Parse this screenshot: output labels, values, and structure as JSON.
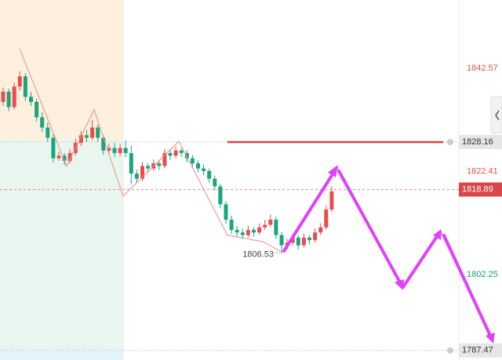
{
  "chart_data": {
    "type": "candlestick",
    "up_color": "#e84d4d",
    "down_color": "#1ba57d",
    "ylim": [
      1785.6,
      1855.9
    ],
    "ohlc": [
      [
        1836,
        1838.8,
        1835.2,
        1838
      ],
      [
        1838,
        1838.6,
        1834.2,
        1835
      ],
      [
        1835,
        1839.8,
        1834.5,
        1839
      ],
      [
        1839,
        1842,
        1838.2,
        1841
      ],
      [
        1841,
        1841.6,
        1836.2,
        1837
      ],
      [
        1837,
        1838,
        1835.2,
        1836
      ],
      [
        1836,
        1836.6,
        1832.2,
        1833
      ],
      [
        1833,
        1834,
        1830.2,
        1831
      ],
      [
        1831,
        1832,
        1828.2,
        1829
      ],
      [
        1829,
        1829.6,
        1824.2,
        1825
      ],
      [
        1825,
        1826.3,
        1824.5,
        1825.5
      ],
      [
        1825.5,
        1826,
        1823.7,
        1824.5
      ],
      [
        1824.5,
        1826.8,
        1824,
        1826
      ],
      [
        1826,
        1828.8,
        1825.5,
        1828
      ],
      [
        1828,
        1830.3,
        1827.4,
        1829.5
      ],
      [
        1829.5,
        1830.5,
        1828.2,
        1829
      ],
      [
        1829,
        1832.5,
        1828.5,
        1831
      ],
      [
        1831,
        1831.6,
        1828.2,
        1829
      ],
      [
        1829,
        1829.5,
        1825.7,
        1826.5
      ],
      [
        1826.5,
        1827.8,
        1825.8,
        1827
      ],
      [
        1827,
        1828,
        1825.2,
        1826
      ],
      [
        1826,
        1827.8,
        1825.4,
        1827
      ],
      [
        1827,
        1828.5,
        1825.2,
        1826
      ],
      [
        1826,
        1827.5,
        1820,
        1822
      ],
      [
        1822,
        1822.8,
        1820.2,
        1821
      ],
      [
        1821,
        1824.3,
        1820.5,
        1823.5
      ],
      [
        1823.5,
        1824,
        1822.2,
        1823
      ],
      [
        1823,
        1824.8,
        1822.5,
        1824
      ],
      [
        1824,
        1824.6,
        1822.7,
        1823.5
      ],
      [
        1823.5,
        1826.8,
        1823,
        1826
      ],
      [
        1826,
        1826.8,
        1824.7,
        1825.5
      ],
      [
        1825.5,
        1827.3,
        1825,
        1826.5
      ],
      [
        1826.5,
        1827,
        1825.2,
        1826
      ],
      [
        1826,
        1826.6,
        1824.2,
        1825
      ],
      [
        1825,
        1825.6,
        1823.2,
        1824
      ],
      [
        1824,
        1824.6,
        1822.2,
        1823
      ],
      [
        1823,
        1823.8,
        1821.7,
        1822.5
      ],
      [
        1822.5,
        1823,
        1820.2,
        1821
      ],
      [
        1821,
        1821.6,
        1818.7,
        1819.5
      ],
      [
        1819.5,
        1820,
        1815.2,
        1816
      ],
      [
        1816,
        1816.6,
        1812.2,
        1813
      ],
      [
        1813,
        1813.8,
        1810.2,
        1811
      ],
      [
        1811,
        1811.8,
        1809.7,
        1810.5
      ],
      [
        1810.5,
        1811.3,
        1809.2,
        1810
      ],
      [
        1810,
        1811.8,
        1809.5,
        1811
      ],
      [
        1811,
        1811.6,
        1809.7,
        1810.5
      ],
      [
        1810.5,
        1812.3,
        1810,
        1811.5
      ],
      [
        1811.5,
        1813,
        1811,
        1812
      ],
      [
        1812,
        1814,
        1811.5,
        1813
      ],
      [
        1813,
        1813.6,
        1809.2,
        1810
      ],
      [
        1810,
        1810.6,
        1806.53,
        1808
      ],
      [
        1808,
        1809.3,
        1807.2,
        1808.5
      ],
      [
        1808.5,
        1810.3,
        1808,
        1809.5
      ],
      [
        1809.5,
        1810,
        1807.2,
        1808
      ],
      [
        1808,
        1810.3,
        1807.5,
        1809.5
      ],
      [
        1809.5,
        1810,
        1808.2,
        1809
      ],
      [
        1809,
        1811.3,
        1808.5,
        1810.5
      ],
      [
        1810.5,
        1812.3,
        1810,
        1811.5
      ],
      [
        1811.5,
        1815.8,
        1811,
        1815
      ],
      [
        1815,
        1819.5,
        1814.5,
        1818.5
      ]
    ],
    "price_labels": [
      {
        "value": 1842.57,
        "style": "text",
        "color": "#d9534f"
      },
      {
        "value": 1828.16,
        "style": "box",
        "color": "#e6e6e6"
      },
      {
        "value": 1822.41,
        "style": "text",
        "color": "#d9534f"
      },
      {
        "value": 1818.89,
        "style": "box",
        "color": "#d9474a"
      },
      {
        "value": 1802.25,
        "style": "text",
        "color": "#1a9e78"
      },
      {
        "value": 1787.47,
        "style": "box",
        "color": "#e6e6e6"
      }
    ],
    "low_label": {
      "value": 1806.53
    }
  }
}
